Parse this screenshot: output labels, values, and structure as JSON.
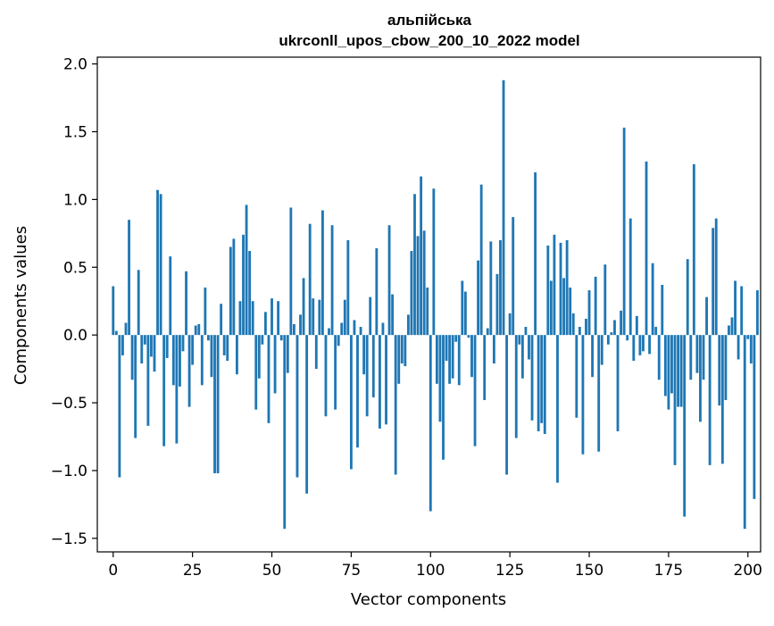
{
  "chart_data": {
    "type": "bar",
    "title_line1": "альпійська",
    "title_line2": "ukrconll_upos_cbow_200_10_2022 model",
    "xlabel": "Vector components",
    "ylabel": "Components values",
    "xlim": [
      -5,
      204
    ],
    "ylim": [
      -1.6,
      2.05
    ],
    "xticks": [
      0,
      25,
      50,
      75,
      100,
      125,
      150,
      175,
      200
    ],
    "xtick_labels": [
      "0",
      "25",
      "50",
      "75",
      "100",
      "125",
      "150",
      "175",
      "200"
    ],
    "yticks": [
      -1.5,
      -1.0,
      -0.5,
      0.0,
      0.5,
      1.0,
      1.5,
      2.0
    ],
    "ytick_labels": [
      "−1.5",
      "−1.0",
      "−0.5",
      "0.0",
      "0.5",
      "1.0",
      "1.5",
      "2.0"
    ],
    "bar_color": "#1f77b4",
    "grid": false,
    "values": [
      0.36,
      0.03,
      -1.05,
      -0.15,
      0.09,
      0.85,
      -0.33,
      -0.76,
      0.48,
      -0.21,
      -0.07,
      -0.67,
      -0.16,
      -0.27,
      1.07,
      1.04,
      -0.82,
      -0.17,
      0.58,
      -0.37,
      -0.8,
      -0.38,
      -0.12,
      0.47,
      -0.53,
      -0.22,
      0.07,
      0.08,
      -0.37,
      0.35,
      -0.04,
      -0.31,
      -1.02,
      -1.02,
      0.23,
      -0.15,
      -0.19,
      0.65,
      0.71,
      -0.29,
      0.25,
      0.74,
      0.96,
      0.62,
      0.25,
      -0.55,
      -0.32,
      -0.07,
      0.17,
      -0.65,
      0.27,
      -0.43,
      0.25,
      -0.04,
      -1.43,
      -0.28,
      0.94,
      0.08,
      -1.05,
      0.15,
      0.42,
      -1.17,
      0.82,
      0.27,
      -0.25,
      0.26,
      0.92,
      -0.6,
      0.05,
      0.81,
      -0.55,
      -0.08,
      0.09,
      0.26,
      0.7,
      -0.99,
      0.11,
      -0.83,
      0.06,
      -0.29,
      -0.6,
      0.28,
      -0.46,
      0.64,
      -0.69,
      0.09,
      -0.66,
      0.81,
      0.3,
      -1.03,
      -0.36,
      -0.21,
      -0.23,
      0.15,
      0.62,
      1.04,
      0.73,
      1.17,
      0.77,
      0.35,
      -1.3,
      1.08,
      -0.36,
      -0.64,
      -0.92,
      -0.19,
      -0.36,
      -0.32,
      -0.05,
      -0.37,
      0.4,
      0.32,
      -0.02,
      -0.31,
      -0.82,
      0.55,
      1.11,
      -0.48,
      0.05,
      0.69,
      -0.21,
      0.45,
      0.7,
      1.88,
      -1.03,
      0.16,
      0.87,
      -0.76,
      -0.07,
      -0.32,
      0.06,
      -0.18,
      -0.63,
      1.2,
      -0.71,
      -0.65,
      -0.73,
      0.66,
      0.4,
      0.74,
      -1.09,
      0.68,
      0.42,
      0.7,
      0.35,
      0.16,
      -0.61,
      0.06,
      -0.88,
      0.12,
      0.33,
      -0.31,
      0.43,
      -0.86,
      -0.22,
      0.52,
      -0.07,
      0.02,
      0.11,
      -0.71,
      0.18,
      1.53,
      -0.04,
      0.86,
      -0.19,
      0.14,
      -0.15,
      -0.12,
      1.28,
      -0.14,
      0.53,
      0.06,
      -0.33,
      0.37,
      -0.45,
      -0.55,
      -0.43,
      -0.96,
      -0.53,
      -0.53,
      -1.34,
      0.56,
      -0.33,
      1.26,
      -0.28,
      -0.64,
      -0.33,
      0.28,
      -0.96,
      0.79,
      0.86,
      -0.52,
      -0.95,
      -0.48,
      0.07,
      0.13,
      0.4,
      -0.18,
      0.36,
      -1.43,
      -0.03,
      -0.21,
      -1.21,
      0.33
    ]
  }
}
